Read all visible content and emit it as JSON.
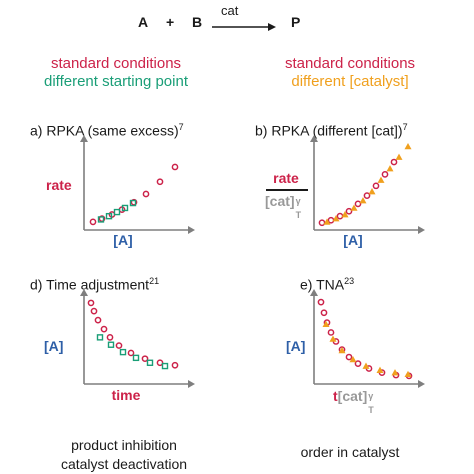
{
  "reaction": {
    "reactant_a": "A",
    "plus": "+",
    "reactant_b": "B",
    "arrow_label": "cat",
    "product": "P"
  },
  "left_header": {
    "line1": "standard conditions",
    "line2": "different starting point"
  },
  "right_header": {
    "line1": "standard conditions",
    "line2": "different [catalyst]"
  },
  "panels": {
    "a": {
      "title": "a) RPKA (same excess)",
      "ref": "7",
      "ylabel": "rate",
      "xlabel": "[A]"
    },
    "b": {
      "title": "b) RPKA (different [cat])",
      "ref": "7",
      "ylabel_num": "rate",
      "ylabel_den": "[cat]",
      "ylabel_den_sup": "γ",
      "ylabel_den_sub": "T",
      "xlabel": "[A]"
    },
    "d": {
      "title": "d) Time adjustment",
      "ref": "21",
      "ylabel": "[A]",
      "xlabel": "time",
      "caption1": "product inhibition",
      "caption2": "catalyst deactivation"
    },
    "e": {
      "title": "e) TNA",
      "ref": "23",
      "ylabel": "[A]",
      "xlabel_t": "t",
      "xlabel_cat": "[cat]",
      "xlabel_sup": "γ",
      "xlabel_sub": "T",
      "caption": "order in catalyst"
    }
  },
  "colors": {
    "standard": "#cc2249",
    "different_start": "#1a9e77",
    "different_catalyst": "#f0a01e",
    "axis_label_blue": "#2e5fa7",
    "axis": "#7f7f7f"
  },
  "chart_data": [
    {
      "type": "scatter",
      "panel": "a",
      "series": [
        {
          "marker": "open-circle",
          "color": "#cc2249",
          "x": [
            0.05,
            0.14,
            0.24,
            0.34,
            0.46,
            0.58,
            0.72,
            0.87
          ],
          "y": [
            0.05,
            0.09,
            0.14,
            0.2,
            0.29,
            0.39,
            0.54,
            0.72
          ]
        },
        {
          "marker": "open-square",
          "color": "#1a9e77",
          "x": [
            0.13,
            0.21,
            0.29,
            0.37,
            0.45
          ],
          "y": [
            0.08,
            0.12,
            0.17,
            0.22,
            0.28
          ]
        }
      ]
    },
    {
      "type": "scatter",
      "panel": "b",
      "series": [
        {
          "marker": "open-circle",
          "color": "#cc2249",
          "x": [
            0.04,
            0.13,
            0.22,
            0.31,
            0.4,
            0.49,
            0.58,
            0.67,
            0.76
          ],
          "y": [
            0.04,
            0.07,
            0.12,
            0.18,
            0.27,
            0.37,
            0.49,
            0.63,
            0.78
          ]
        },
        {
          "marker": "triangle",
          "color": "#f0a01e",
          "x": [
            0.09,
            0.18,
            0.27,
            0.36,
            0.45,
            0.54,
            0.63,
            0.72,
            0.81,
            0.9
          ],
          "y": [
            0.05,
            0.09,
            0.14,
            0.22,
            0.31,
            0.42,
            0.56,
            0.7,
            0.84,
            0.97
          ]
        }
      ]
    },
    {
      "type": "scatter",
      "panel": "d",
      "series": [
        {
          "marker": "open-circle",
          "color": "#cc2249",
          "x": [
            0.03,
            0.06,
            0.1,
            0.16,
            0.22,
            0.31,
            0.43,
            0.57,
            0.72,
            0.87
          ],
          "y": [
            0.94,
            0.84,
            0.73,
            0.62,
            0.52,
            0.42,
            0.33,
            0.26,
            0.21,
            0.18
          ]
        },
        {
          "marker": "open-square",
          "color": "#1a9e77",
          "x": [
            0.12,
            0.23,
            0.35,
            0.48,
            0.62,
            0.77
          ],
          "y": [
            0.52,
            0.43,
            0.34,
            0.27,
            0.21,
            0.17
          ]
        }
      ]
    },
    {
      "type": "scatter",
      "panel": "e",
      "series": [
        {
          "marker": "open-circle",
          "color": "#cc2249",
          "x": [
            0.03,
            0.06,
            0.09,
            0.13,
            0.18,
            0.24,
            0.31,
            0.4,
            0.51,
            0.64,
            0.78,
            0.91
          ],
          "y": [
            0.95,
            0.82,
            0.7,
            0.58,
            0.47,
            0.37,
            0.28,
            0.2,
            0.14,
            0.09,
            0.06,
            0.05
          ]
        },
        {
          "marker": "triangle",
          "color": "#f0a01e",
          "x": [
            0.08,
            0.15,
            0.24,
            0.35,
            0.48,
            0.62,
            0.77,
            0.9
          ],
          "y": [
            0.68,
            0.5,
            0.36,
            0.25,
            0.17,
            0.12,
            0.09,
            0.07
          ]
        }
      ]
    }
  ]
}
